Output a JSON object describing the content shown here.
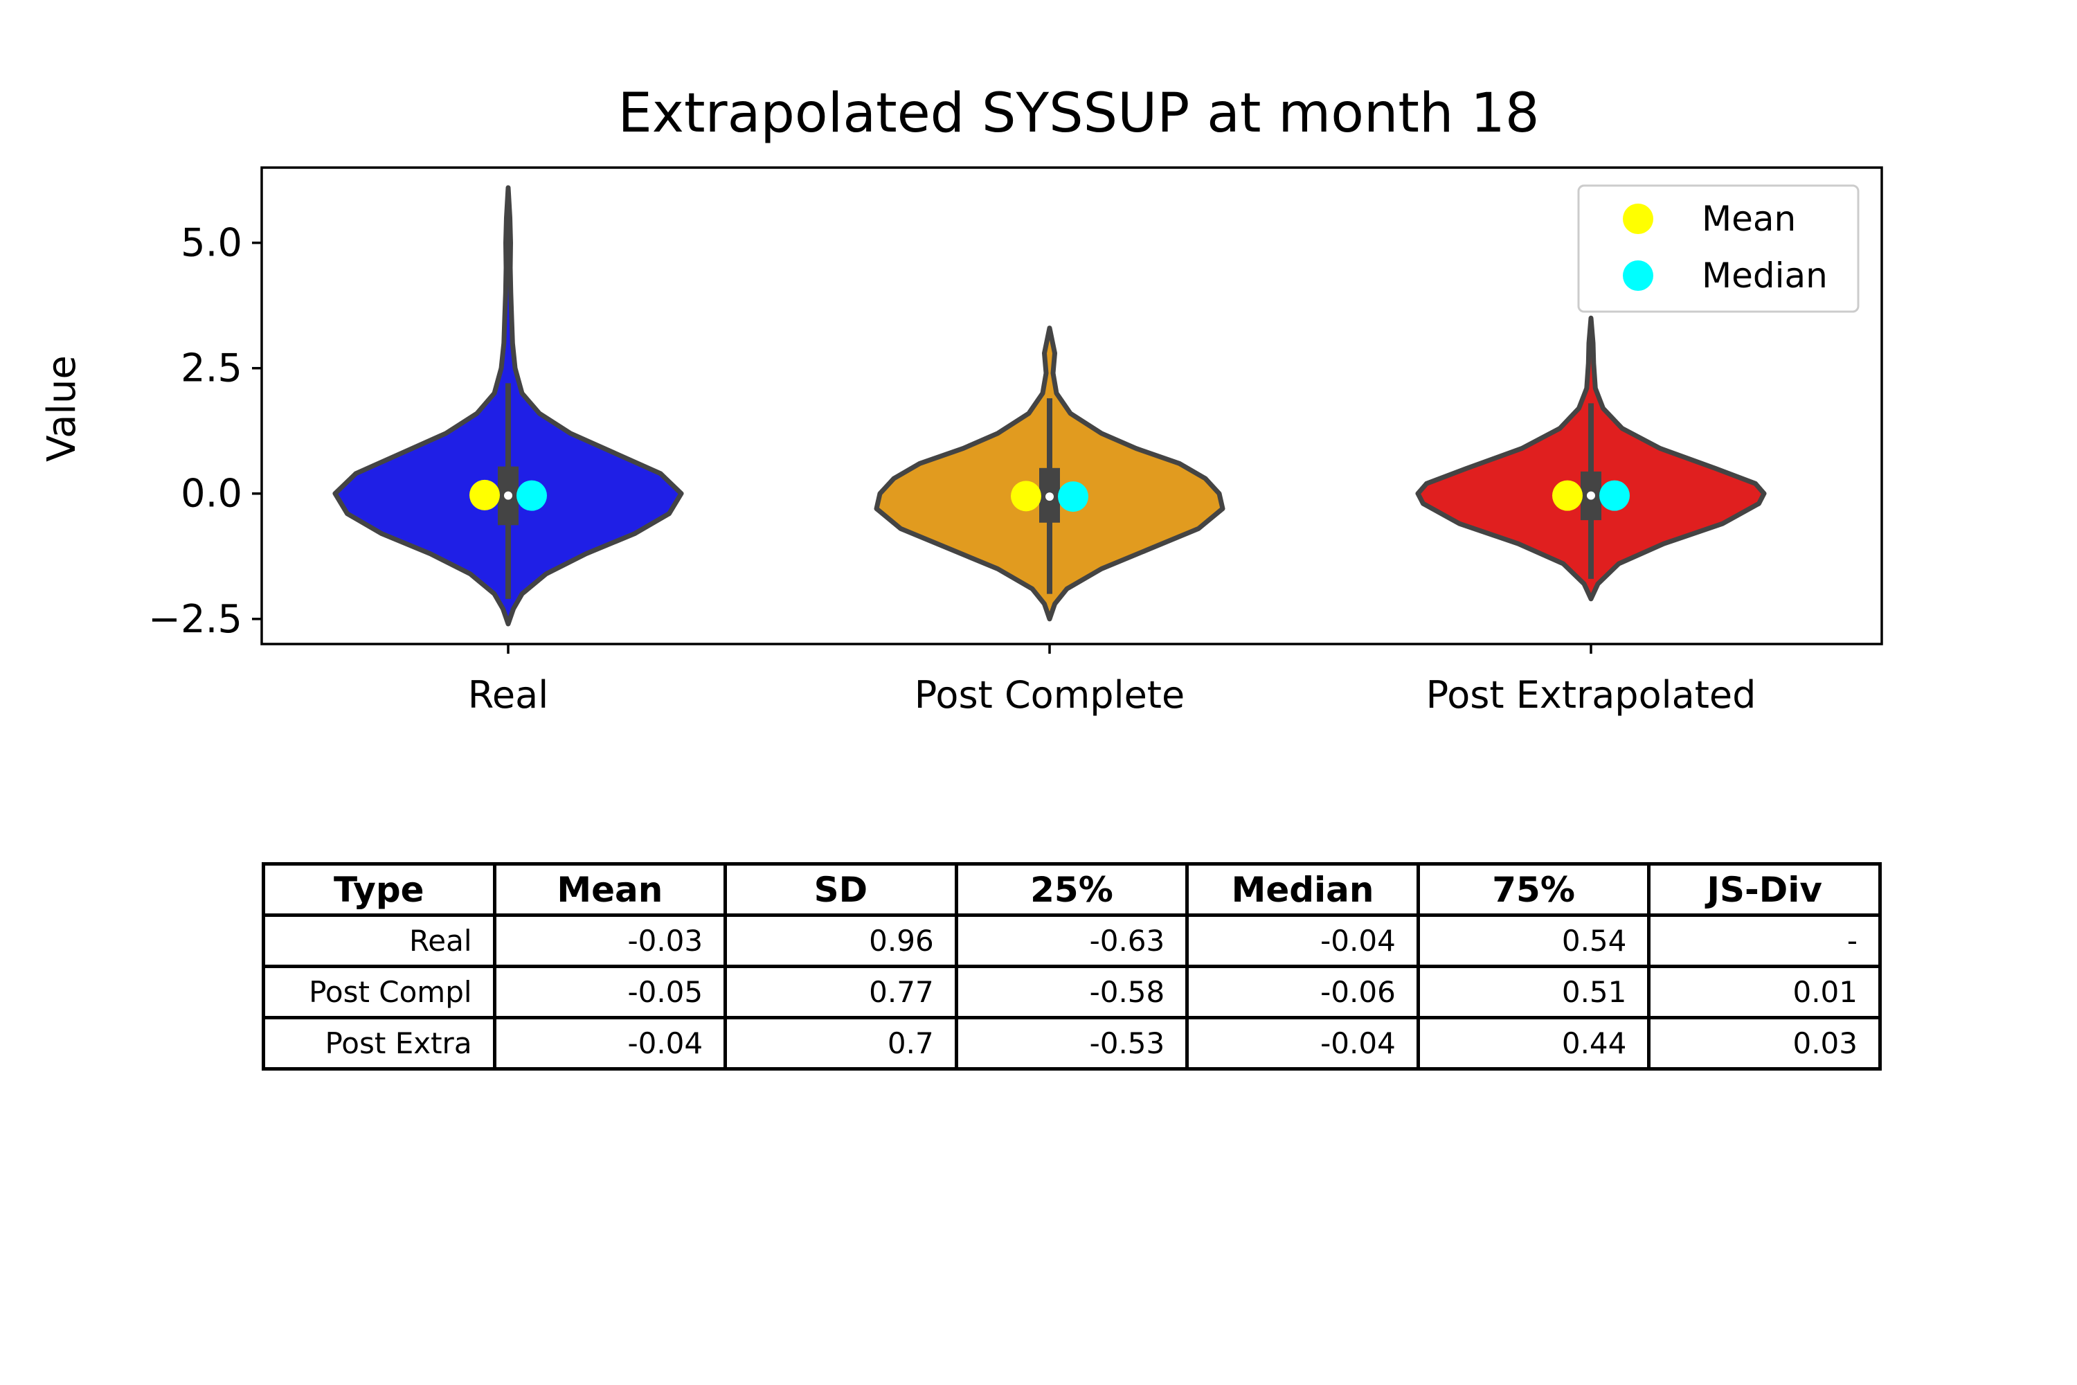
{
  "chart_data": {
    "type": "violin",
    "title": "Extrapolated SYSSUP at month 18",
    "xlabel": "",
    "ylabel": "Value",
    "ylim": [
      -3.0,
      6.5
    ],
    "yticks": [
      -2.5,
      0.0,
      2.5,
      5.0
    ],
    "ytick_labels": [
      "−2.5",
      "0.0",
      "2.5",
      "5.0"
    ],
    "categories": [
      "Real",
      "Post Complete",
      "Post Extrapolated"
    ],
    "colors": [
      "#1f1fe6",
      "#e19b1f",
      "#e01f1f"
    ],
    "legend": {
      "position": "top-right",
      "entries": [
        {
          "label": "Mean",
          "color": "#ffff00"
        },
        {
          "label": "Median",
          "color": "#00ffff"
        }
      ]
    },
    "series": [
      {
        "category": "Real",
        "mean": -0.03,
        "median": -0.04,
        "q1": -0.63,
        "q3": 0.54,
        "whisker_low": -2.1,
        "whisker_high": 2.2,
        "min": -2.6,
        "max": 6.1,
        "density": [
          [
            -2.6,
            0.0
          ],
          [
            -2.3,
            0.03
          ],
          [
            -2.0,
            0.08
          ],
          [
            -1.6,
            0.22
          ],
          [
            -1.2,
            0.45
          ],
          [
            -0.8,
            0.73
          ],
          [
            -0.4,
            0.93
          ],
          [
            0.0,
            1.0
          ],
          [
            0.4,
            0.88
          ],
          [
            0.8,
            0.62
          ],
          [
            1.2,
            0.36
          ],
          [
            1.6,
            0.18
          ],
          [
            2.0,
            0.08
          ],
          [
            2.5,
            0.04
          ],
          [
            3.0,
            0.025
          ],
          [
            3.5,
            0.02
          ],
          [
            4.0,
            0.015
          ],
          [
            4.5,
            0.012
          ],
          [
            5.0,
            0.014
          ],
          [
            5.5,
            0.01
          ],
          [
            6.1,
            0.0
          ]
        ]
      },
      {
        "category": "Post Complete",
        "mean": -0.05,
        "median": -0.06,
        "q1": -0.58,
        "q3": 0.51,
        "whisker_low": -2.0,
        "whisker_high": 1.9,
        "min": -2.5,
        "max": 3.3,
        "density": [
          [
            -2.5,
            0.0
          ],
          [
            -2.2,
            0.03
          ],
          [
            -1.9,
            0.1
          ],
          [
            -1.5,
            0.3
          ],
          [
            -1.1,
            0.58
          ],
          [
            -0.7,
            0.86
          ],
          [
            -0.3,
            1.0
          ],
          [
            0.0,
            0.98
          ],
          [
            0.3,
            0.9
          ],
          [
            0.6,
            0.75
          ],
          [
            0.9,
            0.5
          ],
          [
            1.2,
            0.3
          ],
          [
            1.6,
            0.12
          ],
          [
            2.0,
            0.04
          ],
          [
            2.4,
            0.02
          ],
          [
            2.8,
            0.03
          ],
          [
            3.3,
            0.0
          ]
        ]
      },
      {
        "category": "Post Extrapolated",
        "mean": -0.04,
        "median": -0.04,
        "q1": -0.53,
        "q3": 0.44,
        "whisker_low": -1.7,
        "whisker_high": 1.8,
        "min": -2.1,
        "max": 3.5,
        "density": [
          [
            -2.1,
            0.0
          ],
          [
            -1.8,
            0.04
          ],
          [
            -1.4,
            0.16
          ],
          [
            -1.0,
            0.42
          ],
          [
            -0.6,
            0.76
          ],
          [
            -0.2,
            0.97
          ],
          [
            0.0,
            1.0
          ],
          [
            0.2,
            0.95
          ],
          [
            0.5,
            0.72
          ],
          [
            0.9,
            0.4
          ],
          [
            1.3,
            0.18
          ],
          [
            1.7,
            0.07
          ],
          [
            2.1,
            0.025
          ],
          [
            2.6,
            0.015
          ],
          [
            3.0,
            0.012
          ],
          [
            3.5,
            0.0
          ]
        ]
      }
    ]
  },
  "table": {
    "columns": [
      "Type",
      "Mean",
      "SD",
      "25%",
      "Median",
      "75%",
      "JS-Div"
    ],
    "rows": [
      [
        "Real",
        "-0.03",
        "0.96",
        "-0.63",
        "-0.04",
        "0.54",
        "-"
      ],
      [
        "Post Compl",
        "-0.05",
        "0.77",
        "-0.58",
        "-0.06",
        "0.51",
        "0.01"
      ],
      [
        "Post Extra",
        "-0.04",
        "0.7",
        "-0.53",
        "-0.04",
        "0.44",
        "0.03"
      ]
    ]
  }
}
